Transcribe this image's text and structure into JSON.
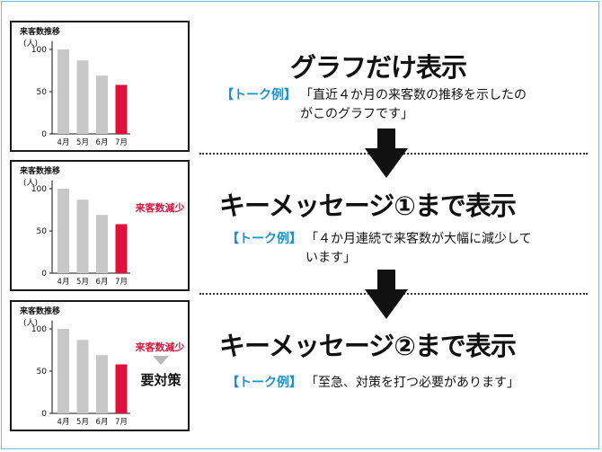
{
  "panels": [
    {
      "chart_data": {
        "type": "bar",
        "title": "来客数推移",
        "ylabel": "(人)",
        "categories": [
          "4月",
          "5月",
          "6月",
          "7月"
        ],
        "values": [
          100,
          87,
          69,
          58
        ],
        "yticks": [
          0,
          50,
          100
        ],
        "ylim": [
          0,
          110
        ],
        "colors": [
          "#c8c8c8",
          "#c8c8c8",
          "#c8c8c8",
          "#e0103a"
        ]
      },
      "annotation": "",
      "action": "",
      "heading": "グラフだけ表示",
      "talk_tag": "【トーク例】",
      "talk_text": "「直近４か月の来客数の推移を示したのがこのグラフです」"
    },
    {
      "chart_data": {
        "type": "bar",
        "title": "来客数推移",
        "ylabel": "(人)",
        "categories": [
          "4月",
          "5月",
          "6月",
          "7月"
        ],
        "values": [
          100,
          87,
          69,
          58
        ],
        "yticks": [
          0,
          50,
          100
        ],
        "ylim": [
          0,
          110
        ],
        "colors": [
          "#c8c8c8",
          "#c8c8c8",
          "#c8c8c8",
          "#e0103a"
        ]
      },
      "annotation": "来客数減少",
      "action": "",
      "heading": "キーメッセージ①まで表示",
      "talk_tag": "【トーク例】",
      "talk_text": "「４か月連続で来客数が大幅に減少しています」"
    },
    {
      "chart_data": {
        "type": "bar",
        "title": "来客数推移",
        "ylabel": "(人)",
        "categories": [
          "4月",
          "5月",
          "6月",
          "7月"
        ],
        "values": [
          100,
          87,
          69,
          58
        ],
        "yticks": [
          0,
          50,
          100
        ],
        "ylim": [
          0,
          110
        ],
        "colors": [
          "#c8c8c8",
          "#c8c8c8",
          "#c8c8c8",
          "#e0103a"
        ]
      },
      "annotation": "来客数減少",
      "action": "要対策",
      "heading": "キーメッセージ②まで表示",
      "talk_tag": "【トーク例】",
      "talk_text": "「至急、対策を打つ必要があります」"
    }
  ],
  "colors": {
    "accent_red": "#e0103a",
    "bar_gray": "#c8c8c8",
    "tag_blue": "#1a8fd1"
  }
}
